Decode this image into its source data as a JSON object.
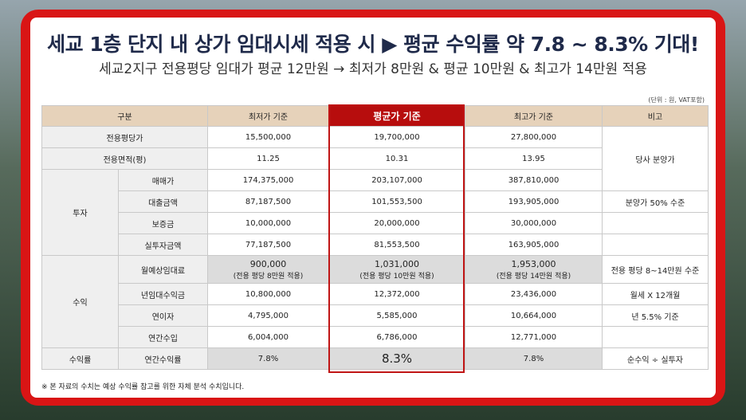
{
  "title": "세교 1층 단지 내 상가 임대시세 적용 시 ▶ 평균 수익률 약 7.8 ~ 8.3% 기대!",
  "subtitle": "세교2지구 전용평당 임대가 평균 12만원 → 최저가 8만원 & 평균 10만원 & 최고가 14만원 적용",
  "unit_note": "(단위 : 원, VAT포함)",
  "footnote": "※ 본 자료의 수치는 예상 수익률 참고를 위한 자체 분석 수치입니다.",
  "headers": [
    "구분",
    "최저가 기준",
    "평균가 기준",
    "최고가 기준",
    "비고"
  ],
  "rows": {
    "pyeong_price": {
      "label": "전용평당가",
      "low": "15,500,000",
      "avg": "19,700,000",
      "high": "27,800,000"
    },
    "area": {
      "label": "전용면적(평)",
      "low": "11.25",
      "avg": "10.31",
      "high": "13.95"
    },
    "note_company": "당사 분양가",
    "invest_group": "투자",
    "sale": {
      "label": "매매가",
      "low": "174,375,000",
      "avg": "203,107,000",
      "high": "387,810,000"
    },
    "loan": {
      "label": "대출금액",
      "low": "87,187,500",
      "avg": "101,553,500",
      "high": "193,905,000",
      "note": "분양가 50% 수준"
    },
    "deposit": {
      "label": "보증금",
      "low": "10,000,000",
      "avg": "20,000,000",
      "high": "30,000,000"
    },
    "actual": {
      "label": "실투자금액",
      "low": "77,187,500",
      "avg": "81,553,500",
      "high": "163,905,000"
    },
    "income_group": "수익",
    "rent": {
      "label": "월예상임대료",
      "low": "900,000",
      "low_sub": "(전용 평당 8만원 적용)",
      "avg": "1,031,000",
      "avg_sub": "(전용 평당 10만원 적용)",
      "high": "1,953,000",
      "high_sub": "(전용 평당 14만원 적용)",
      "note": "전용 평당 8~14만원 수준"
    },
    "annual_rent": {
      "label": "년임대수익금",
      "low": "10,800,000",
      "avg": "12,372,000",
      "high": "23,436,000",
      "note": "월세 X 12개월"
    },
    "interest": {
      "label": "연이자",
      "low": "4,795,000",
      "avg": "5,585,000",
      "high": "10,664,000",
      "note": "년 5.5% 기준"
    },
    "annual_income": {
      "label": "연간수입",
      "low": "6,004,000",
      "avg": "6,786,000",
      "high": "12,771,000"
    },
    "yield_group": "수익률",
    "yield": {
      "label": "연간수익률",
      "low": "7.8%",
      "avg": "8.3%",
      "high": "7.8%",
      "note": "순수익 ÷ 실투자"
    }
  }
}
